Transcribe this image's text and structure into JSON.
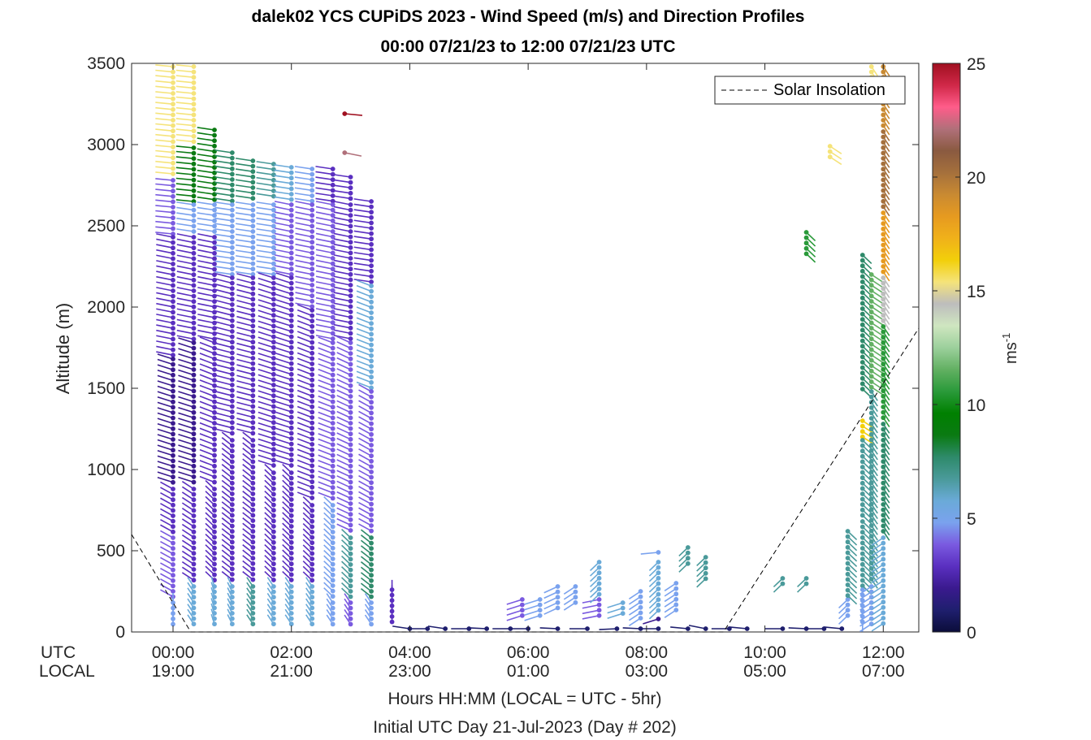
{
  "title_line1": "dalek02 YCS CUPiDS 2023 - Wind Speed (m/s) and Direction Profiles",
  "title_line2": "00:00 07/21/23 to 12:00 07/21/23  UTC",
  "axis_labels": {
    "ylabel": "Altitude (m)",
    "xlabel": "Hours HH:MM  (LOCAL = UTC - 5hr)",
    "subtitle": "Initial UTC Day 21-Jul-2023 (Day # 202)",
    "utc_row_label": "UTC",
    "local_row_label": "LOCAL",
    "colorbar_unit": "ms-1"
  },
  "x_ticks": [
    {
      "utc": "00:00",
      "local": "19:00"
    },
    {
      "utc": "02:00",
      "local": "21:00"
    },
    {
      "utc": "04:00",
      "local": "23:00"
    },
    {
      "utc": "06:00",
      "local": "01:00"
    },
    {
      "utc": "08:00",
      "local": "03:00"
    },
    {
      "utc": "10:00",
      "local": "05:00"
    },
    {
      "utc": "12:00",
      "local": "07:00"
    }
  ],
  "y_ticks": [
    "0",
    "500",
    "1000",
    "1500",
    "2000",
    "2500",
    "3000",
    "3500"
  ],
  "colorbar_ticks": [
    "0",
    "5",
    "10",
    "15",
    "20",
    "25"
  ],
  "legend": {
    "label": "Solar Insolation",
    "position": "top-right"
  },
  "colors": {
    "colormap": [
      "#0b0d3a",
      "#1f1f6e",
      "#3a1a8e",
      "#5a2fc0",
      "#7a5ae0",
      "#7aa2ee",
      "#6aaad8",
      "#4a9a9a",
      "#2e8a6a",
      "#0a7a12",
      "#008000",
      "#2a9a3a",
      "#62b062",
      "#9cd09c",
      "#cfe6c0",
      "#bdbdbd",
      "#f5e37a",
      "#f2cf0a",
      "#f0b11a",
      "#e69a20",
      "#c98a32",
      "#a5703c",
      "#8a5a40",
      "#b0707a",
      "#ff5c8a",
      "#d02848",
      "#a01020"
    ]
  },
  "chart_data": {
    "type": "wind-barb-profile",
    "xlim_hours_utc": [
      -0.7,
      12.6
    ],
    "ylim": [
      0,
      3500
    ],
    "clim": [
      0,
      25
    ],
    "grid": false,
    "legend_position": "top-right",
    "profiles": [
      {
        "t": 0.0,
        "bands": [
          [
            2800,
            3480,
            15,
            80
          ],
          [
            2450,
            2780,
            4,
            80
          ],
          [
            1700,
            2430,
            3,
            70
          ],
          [
            900,
            1680,
            1.5,
            60
          ],
          [
            600,
            880,
            2.5,
            45
          ],
          [
            200,
            580,
            3.5,
            45
          ],
          [
            40,
            180,
            5,
            0
          ]
        ]
      },
      {
        "t": 0.35,
        "bands": [
          [
            3000,
            3480,
            15,
            80
          ],
          [
            2650,
            2980,
            9,
            80
          ],
          [
            2450,
            2630,
            5,
            75
          ],
          [
            1800,
            2430,
            3,
            70
          ],
          [
            900,
            1780,
            2,
            60
          ],
          [
            300,
            880,
            3,
            40
          ],
          [
            40,
            280,
            6,
            20
          ]
        ]
      },
      {
        "t": 0.7,
        "bands": [
          [
            2650,
            3090,
            9,
            75
          ],
          [
            2450,
            2630,
            5,
            75
          ],
          [
            1800,
            2430,
            3,
            70
          ],
          [
            900,
            1780,
            2.5,
            55
          ],
          [
            300,
            880,
            3,
            30
          ],
          [
            40,
            280,
            6,
            10
          ]
        ]
      },
      {
        "t": 1.0,
        "bands": [
          [
            2650,
            2950,
            8,
            75
          ],
          [
            2200,
            2630,
            5,
            75
          ],
          [
            1200,
            2180,
            3,
            65
          ],
          [
            300,
            1180,
            2.5,
            35
          ],
          [
            40,
            280,
            6,
            15
          ]
        ]
      },
      {
        "t": 1.35,
        "bands": [
          [
            2650,
            2900,
            8,
            75
          ],
          [
            2200,
            2630,
            5,
            75
          ],
          [
            1200,
            2180,
            3,
            65
          ],
          [
            300,
            1180,
            3,
            35
          ],
          [
            40,
            280,
            7,
            20
          ]
        ]
      },
      {
        "t": 1.7,
        "bands": [
          [
            2650,
            2880,
            7,
            75
          ],
          [
            2200,
            2630,
            4.5,
            75
          ],
          [
            1000,
            2180,
            3,
            60
          ],
          [
            300,
            980,
            3,
            30
          ],
          [
            40,
            280,
            6,
            20
          ]
        ]
      },
      {
        "t": 2.0,
        "bands": [
          [
            2650,
            2860,
            6,
            75
          ],
          [
            2200,
            2630,
            4,
            70
          ],
          [
            1000,
            2180,
            3,
            60
          ],
          [
            300,
            980,
            3,
            30
          ],
          [
            40,
            280,
            5.5,
            20
          ]
        ]
      },
      {
        "t": 2.35,
        "bands": [
          [
            2650,
            2850,
            5,
            75
          ],
          [
            2000,
            2630,
            4,
            70
          ],
          [
            800,
            1980,
            3,
            55
          ],
          [
            300,
            780,
            3,
            30
          ],
          [
            40,
            280,
            6,
            20
          ]
        ]
      },
      {
        "t": 2.7,
        "bands": [
          [
            2650,
            2850,
            3,
            75
          ],
          [
            1800,
            2630,
            3.5,
            70
          ],
          [
            800,
            1780,
            4,
            55
          ],
          [
            200,
            780,
            5,
            30
          ],
          [
            40,
            180,
            5,
            20
          ]
        ]
      },
      {
        "t": 3.0,
        "bands": [
          [
            2650,
            2800,
            2.5,
            75
          ],
          [
            1800,
            2630,
            3,
            70
          ],
          [
            600,
            1780,
            4,
            50
          ],
          [
            200,
            580,
            7,
            30
          ],
          [
            40,
            180,
            4,
            20
          ]
        ]
      },
      {
        "t": 3.35,
        "bands": [
          [
            2150,
            2650,
            3,
            75
          ],
          [
            1500,
            2130,
            5.5,
            55
          ],
          [
            600,
            1480,
            4,
            45
          ],
          [
            200,
            580,
            8,
            35
          ],
          [
            40,
            180,
            4.5,
            20
          ]
        ]
      },
      {
        "t": 3.7,
        "bands": [
          [
            40,
            260,
            3,
            0
          ]
        ]
      },
      {
        "t": 4.0,
        "bands": [
          [
            20,
            20,
            0.5,
            75
          ]
        ]
      },
      {
        "t": 4.3,
        "bands": [
          [
            20,
            20,
            0.5,
            90
          ]
        ]
      },
      {
        "t": 4.6,
        "bands": [
          [
            20,
            20,
            0.5,
            75
          ]
        ]
      },
      {
        "t": 5.0,
        "bands": [
          [
            20,
            20,
            0.5,
            90
          ]
        ]
      },
      {
        "t": 5.3,
        "bands": [
          [
            20,
            20,
            0.5,
            85
          ]
        ]
      },
      {
        "t": 5.7,
        "bands": [
          [
            20,
            20,
            0.5,
            90
          ]
        ]
      },
      {
        "t": 5.9,
        "bands": [
          [
            100,
            200,
            4,
            120
          ]
        ]
      },
      {
        "t": 6.2,
        "bands": [
          [
            100,
            200,
            4.5,
            120
          ]
        ]
      },
      {
        "t": 6.0,
        "bands": [
          [
            20,
            20,
            0.5,
            90
          ]
        ]
      },
      {
        "t": 6.5,
        "bands": [
          [
            120,
            280,
            5,
            130
          ],
          [
            20,
            20,
            0.5,
            85
          ]
        ]
      },
      {
        "t": 6.8,
        "bands": [
          [
            180,
            280,
            5,
            140
          ]
        ]
      },
      {
        "t": 7.0,
        "bands": [
          [
            20,
            20,
            0.5,
            90
          ]
        ]
      },
      {
        "t": 7.2,
        "bands": [
          [
            80,
            200,
            4,
            110
          ],
          [
            230,
            430,
            5.5,
            150
          ]
        ]
      },
      {
        "t": 7.5,
        "bands": [
          [
            20,
            20,
            0.5,
            95
          ]
        ]
      },
      {
        "t": 7.6,
        "bands": [
          [
            90,
            180,
            6,
            120
          ]
        ]
      },
      {
        "t": 7.9,
        "bands": [
          [
            80,
            250,
            5,
            140
          ],
          [
            20,
            20,
            0.5,
            85
          ]
        ]
      },
      {
        "t": 8.2,
        "bands": [
          [
            50,
            80,
            2,
            120
          ],
          [
            120,
            430,
            6,
            150
          ],
          [
            490,
            490,
            4.5,
            100
          ],
          [
            20,
            20,
            0.5,
            90
          ]
        ]
      },
      {
        "t": 8.5,
        "bands": [
          [
            130,
            300,
            5,
            140
          ]
        ]
      },
      {
        "t": 8.7,
        "bands": [
          [
            410,
            520,
            7,
            150
          ],
          [
            20,
            20,
            0.5,
            80
          ]
        ]
      },
      {
        "t": 9.0,
        "bands": [
          [
            300,
            460,
            7,
            150
          ],
          [
            20,
            20,
            0.5,
            70
          ]
        ]
      },
      {
        "t": 9.4,
        "bands": [
          [
            20,
            20,
            0.5,
            90
          ]
        ]
      },
      {
        "t": 9.7,
        "bands": [
          [
            20,
            20,
            0.5,
            80
          ]
        ]
      },
      {
        "t": 10.3,
        "bands": [
          [
            270,
            330,
            7,
            150
          ],
          [
            20,
            20,
            0.5,
            90
          ]
        ]
      },
      {
        "t": 10.7,
        "bands": [
          [
            270,
            330,
            7,
            150
          ],
          [
            2310,
            2460,
            11,
            210
          ],
          [
            20,
            20,
            0.5,
            85
          ]
        ]
      },
      {
        "t": 11.0,
        "bands": [
          [
            20,
            20,
            0.5,
            90
          ]
        ]
      },
      {
        "t": 11.1,
        "bands": [
          [
            2900,
            2990,
            15,
            220
          ]
        ]
      },
      {
        "t": 11.3,
        "bands": [
          [
            20,
            20,
            1,
            80
          ]
        ]
      },
      {
        "t": 11.4,
        "bands": [
          [
            80,
            200,
            5,
            150
          ],
          [
            220,
            620,
            7,
            210
          ]
        ]
      },
      {
        "t": 11.65,
        "bands": [
          [
            1470,
            2320,
            8,
            210
          ],
          [
            1200,
            1300,
            16,
            220
          ],
          [
            700,
            1180,
            7,
            210
          ],
          [
            280,
            680,
            7,
            210
          ],
          [
            40,
            260,
            5,
            180
          ]
        ]
      },
      {
        "t": 11.8,
        "bands": [
          [
            3350,
            3480,
            15,
            200
          ],
          [
            1500,
            2200,
            12,
            220
          ],
          [
            300,
            1480,
            7,
            200
          ],
          [
            40,
            280,
            5,
            140
          ]
        ]
      },
      {
        "t": 12.0,
        "bands": [
          [
            3100,
            3480,
            19,
            200
          ],
          [
            2600,
            3080,
            20,
            200
          ],
          [
            2200,
            2580,
            18,
            200
          ],
          [
            1900,
            2180,
            14,
            200
          ],
          [
            1300,
            1880,
            11,
            200
          ],
          [
            600,
            1280,
            8,
            200
          ],
          [
            40,
            580,
            6,
            140
          ]
        ]
      }
    ],
    "singles": [
      {
        "t": 2.9,
        "alt": 3190,
        "speed": 25,
        "dir": 260
      },
      {
        "t": 2.9,
        "alt": 2950,
        "speed": 22,
        "dir": 250
      }
    ],
    "solar_insolation": [
      {
        "t": -0.7,
        "alt": 600
      },
      {
        "t": 0.3,
        "alt": 0
      },
      {
        "t": 9.3,
        "alt": 0
      },
      {
        "t": 12.6,
        "alt": 1870
      }
    ]
  }
}
